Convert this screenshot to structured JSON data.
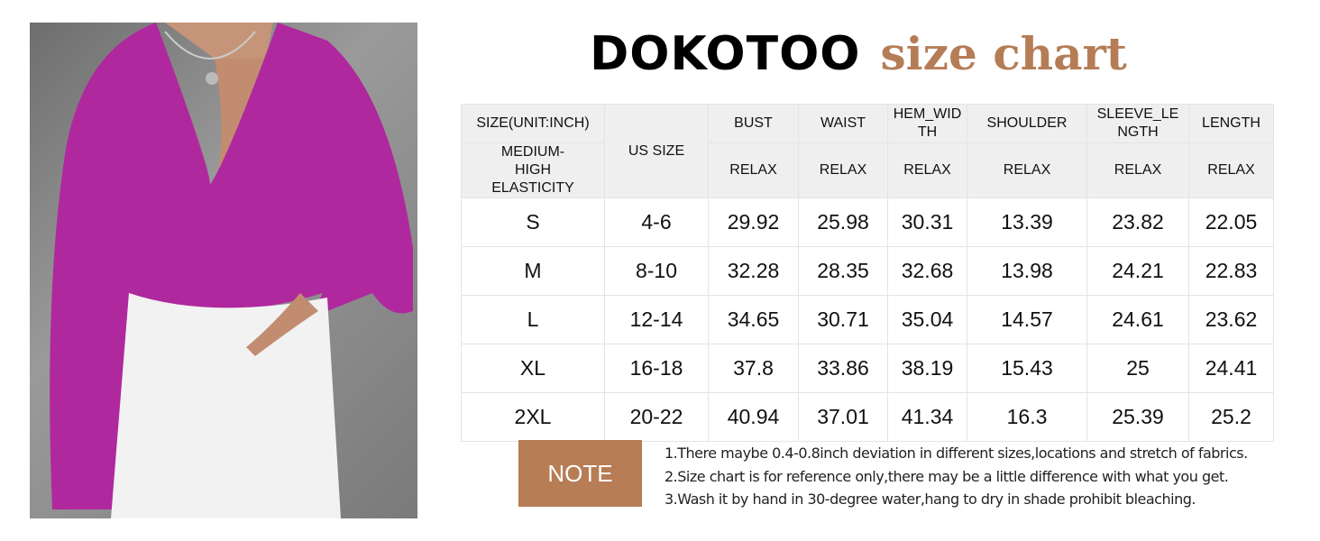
{
  "title": {
    "brand": "DOKOTOO",
    "subtitle": "size chart",
    "accent_color": "#b57d56"
  },
  "photo": {
    "description_icon": "model-photo",
    "top_color": "#b0289e",
    "jeans_color": "#f2f2f2"
  },
  "table": {
    "header_row1": [
      "SIZE(UNIT:INCH)",
      "US SIZE",
      "BUST",
      "WAIST",
      "HEM_WIDTH",
      "SHOULDER",
      "SLEEVE_LENGTH",
      "LENGTH"
    ],
    "header_row1_display": [
      "SIZE(UNIT:INCH)",
      "US SIZE",
      "BUST",
      "WAIST",
      "HEM_WID TH",
      "SHOULDER",
      "SLEEVE_LE NGTH",
      "LENGTH"
    ],
    "elasticity": "MEDIUM-HIGH ELASTICITY",
    "relax": "RELAX",
    "rows": [
      [
        "S",
        "4-6",
        "29.92",
        "25.98",
        "30.31",
        "13.39",
        "23.82",
        "22.05"
      ],
      [
        "M",
        "8-10",
        "32.28",
        "28.35",
        "32.68",
        "13.98",
        "24.21",
        "22.83"
      ],
      [
        "L",
        "12-14",
        "34.65",
        "30.71",
        "35.04",
        "14.57",
        "24.61",
        "23.62"
      ],
      [
        "XL",
        "16-18",
        "37.8",
        "33.86",
        "38.19",
        "15.43",
        "25",
        "24.41"
      ],
      [
        "2XL",
        "20-22",
        "40.94",
        "37.01",
        "41.34",
        "16.3",
        "25.39",
        "25.2"
      ]
    ]
  },
  "note": {
    "label": "NOTE",
    "color": "#b77d55",
    "lines": [
      "1.There maybe 0.4-0.8inch deviation in different sizes,locations and stretch of fabrics.",
      "2.Size chart is for reference only,there may be a little difference with what you get.",
      "3.Wash it by hand in 30-degree water,hang to dry in shade prohibit bleaching."
    ]
  }
}
